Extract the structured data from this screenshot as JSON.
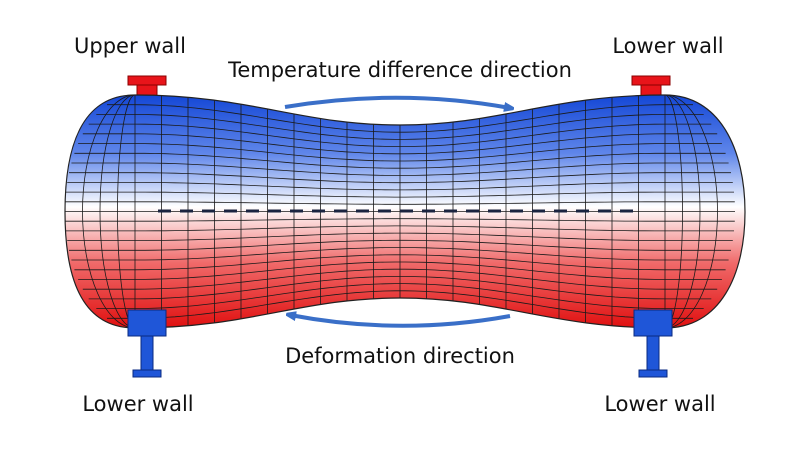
{
  "supports": [
    {
      "label": "Upper wall"
    },
    {
      "label": "Lower wall"
    },
    {
      "label": "Lower wall"
    },
    {
      "label": "Lower wall"
    }
  ],
  "arrows": [
    {
      "label": "Temperature difference direction"
    },
    {
      "label": "Deformation direction"
    }
  ]
}
